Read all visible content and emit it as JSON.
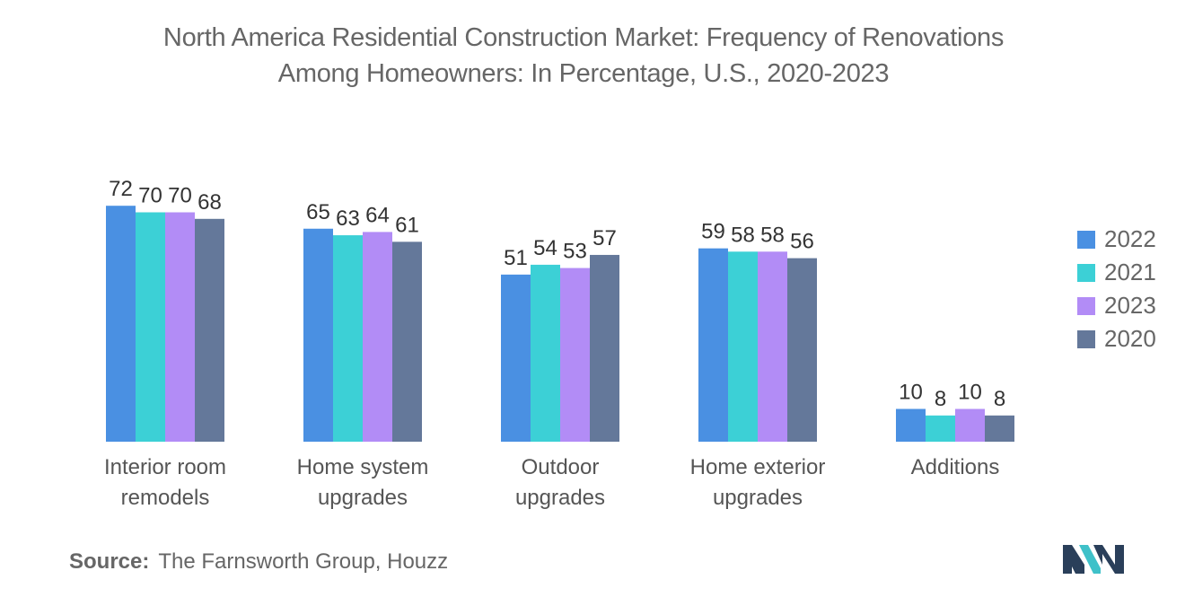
{
  "title_lines": [
    "North America Residential Construction Market: Frequency of Renovations",
    "Among Homeowners: In Percentage, U.S., 2020-2023"
  ],
  "source": {
    "label": "Source:",
    "text": "The Farnsworth Group, Houzz"
  },
  "colors": {
    "text": "#666666",
    "logo_primary": "#2a3f5a",
    "logo_accent": "#3fc1c9"
  },
  "chart_data": {
    "type": "bar",
    "title": "North America Residential Construction Market: Frequency of Renovations Among Homeowners: In Percentage, U.S., 2020-2023",
    "xlabel": "",
    "ylabel": "",
    "ylim": [
      0,
      80
    ],
    "grid": false,
    "legend_position": "right",
    "categories": [
      [
        "Interior room",
        "remodels"
      ],
      [
        "Home system",
        "upgrades"
      ],
      [
        "Outdoor",
        "upgrades"
      ],
      [
        "Home exterior",
        "upgrades"
      ],
      [
        "Additions"
      ]
    ],
    "series": [
      {
        "name": "2022",
        "color": "#4a90e2",
        "values": [
          72,
          65,
          51,
          59,
          10
        ]
      },
      {
        "name": "2021",
        "color": "#3cd0d6",
        "values": [
          70,
          63,
          54,
          58,
          8
        ]
      },
      {
        "name": "2023",
        "color": "#b28cf6",
        "values": [
          70,
          64,
          53,
          58,
          10
        ]
      },
      {
        "name": "2020",
        "color": "#64789a",
        "values": [
          68,
          61,
          57,
          56,
          8
        ]
      }
    ]
  }
}
